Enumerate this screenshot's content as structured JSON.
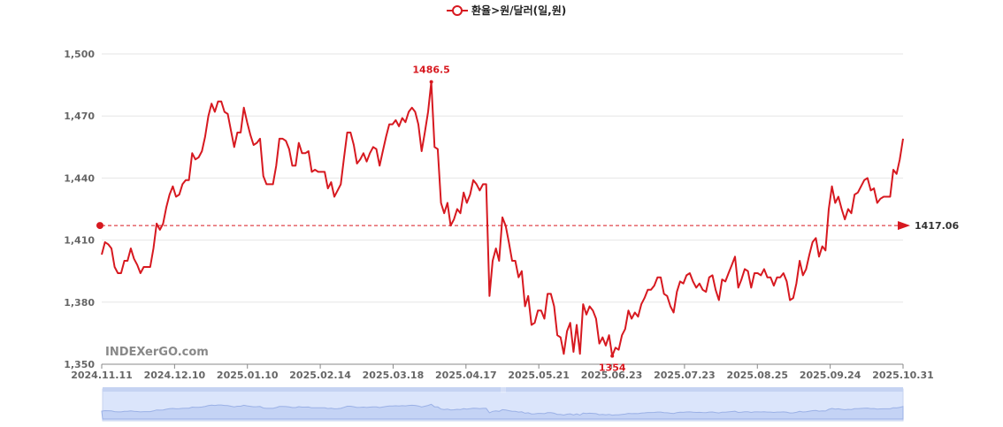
{
  "legend": {
    "label": "환율>원/달러(일,원)"
  },
  "watermark": "INDEXerGO.com",
  "zoom_handle_label": "|||",
  "colors": {
    "line": "#d71920",
    "grid": "#e6e6e6",
    "axis": "#888888",
    "slider_fill": "#dbe5fb",
    "slider_line": "#9bb1e6"
  },
  "chart_data": {
    "type": "line",
    "title": "",
    "xlabel": "",
    "ylabel": "",
    "ylim": [
      1350,
      1500
    ],
    "y_ticks": [
      "1,350",
      "1,380",
      "1,410",
      "1,440",
      "1,470",
      "1,500"
    ],
    "y_tick_values": [
      1350,
      1380,
      1410,
      1440,
      1470,
      1500
    ],
    "x_ticks": [
      "2024.11.11",
      "2024.12.10",
      "2025.01.10",
      "2025.02.14",
      "2025.03.18",
      "2025.04.17",
      "2025.05.21",
      "2025.06.23",
      "2025.07.23",
      "2025.08.25",
      "2025.09.24",
      "2025.10.31"
    ],
    "series": [
      {
        "name": "환율>원/달러(일,원)",
        "values": [
          1403,
          1409,
          1408,
          1406,
          1397,
          1394,
          1394,
          1400,
          1400,
          1406,
          1401,
          1398,
          1394,
          1397,
          1397,
          1397,
          1406,
          1418,
          1415,
          1418,
          1426,
          1432,
          1436,
          1431,
          1432,
          1437,
          1439,
          1439,
          1452,
          1449,
          1450,
          1453,
          1460,
          1470,
          1476,
          1472,
          1477,
          1477,
          1472,
          1471,
          1463,
          1455,
          1462,
          1462,
          1474,
          1467,
          1461,
          1456,
          1457,
          1459,
          1441,
          1437,
          1437,
          1437,
          1446,
          1459,
          1459,
          1458,
          1454,
          1446,
          1446,
          1457,
          1452,
          1452,
          1453,
          1443,
          1444,
          1443,
          1443,
          1443,
          1435,
          1438,
          1431,
          1434,
          1437,
          1450,
          1462,
          1462,
          1456,
          1447,
          1449,
          1452,
          1448,
          1452,
          1455,
          1454,
          1446,
          1453,
          1460,
          1466,
          1466,
          1468,
          1465,
          1469,
          1467,
          1472,
          1474,
          1472,
          1466,
          1453,
          1462,
          1472,
          1486.5,
          1455,
          1454,
          1428,
          1423,
          1428,
          1417,
          1420,
          1425,
          1423,
          1433,
          1428,
          1432,
          1439,
          1437,
          1434,
          1437,
          1437,
          1383,
          1400,
          1406,
          1400,
          1421,
          1417,
          1409,
          1400,
          1400,
          1392,
          1395,
          1378,
          1383,
          1369,
          1370,
          1376,
          1376,
          1372,
          1384,
          1384,
          1378,
          1364,
          1363,
          1355,
          1366,
          1370,
          1356,
          1369,
          1355,
          1379,
          1374,
          1378,
          1376,
          1372,
          1360,
          1363,
          1359,
          1364,
          1354,
          1358,
          1357,
          1364,
          1367,
          1376,
          1372,
          1375,
          1373,
          1379,
          1382,
          1386,
          1386,
          1388,
          1392,
          1392,
          1384,
          1383,
          1378,
          1375,
          1385,
          1390,
          1389,
          1393,
          1394,
          1390,
          1387,
          1389,
          1386,
          1385,
          1392,
          1393,
          1386,
          1381,
          1391,
          1390,
          1394,
          1398,
          1402,
          1387,
          1391,
          1396,
          1395,
          1387,
          1394,
          1394,
          1393,
          1396,
          1392,
          1392,
          1388,
          1392,
          1392,
          1394,
          1390,
          1381,
          1382,
          1389,
          1400,
          1393,
          1396,
          1403,
          1409,
          1411,
          1402,
          1407,
          1405,
          1425,
          1436,
          1428,
          1431,
          1425,
          1420,
          1425,
          1423,
          1432,
          1433,
          1436,
          1439,
          1440,
          1434,
          1435,
          1428,
          1430,
          1431,
          1431,
          1431,
          1444,
          1442,
          1449,
          1459
        ]
      }
    ],
    "average": 1417.06,
    "average_label": "1417.06",
    "annotations": {
      "max_label": "1486.5",
      "max_value": 1486.5,
      "min_label": "1354",
      "min_value": 1354
    }
  }
}
